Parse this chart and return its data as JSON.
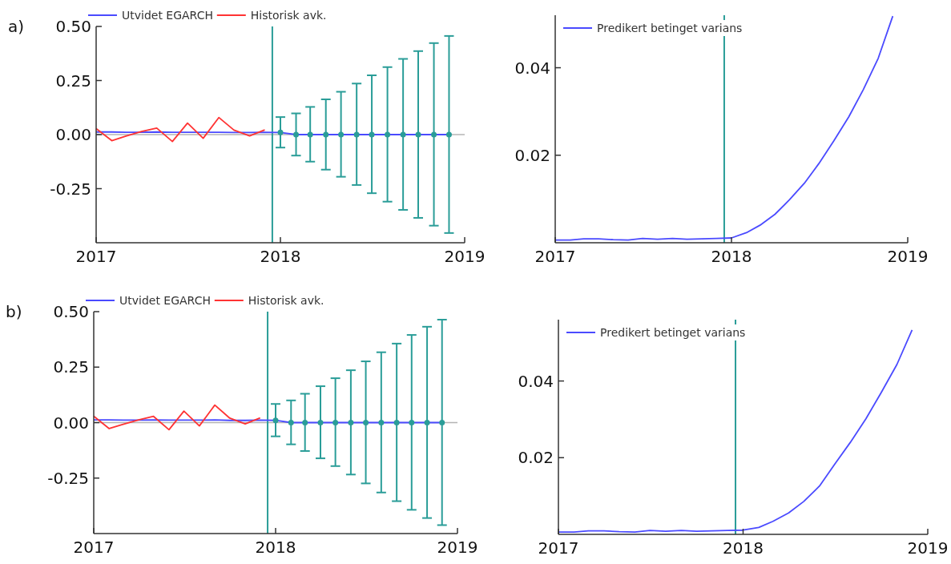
{
  "chart_data": [
    {
      "type": "line",
      "annotations": [
        "a)"
      ],
      "legend": "top",
      "marker": "none",
      "line_style": "solid",
      "xlim": [
        "2017-01-01",
        "2019-01-01"
      ],
      "xticks": [
        {
          "value": "2017-01-01",
          "label": "2017"
        },
        {
          "value": "2018-01-01",
          "label": "2018"
        },
        {
          "value": "2019-01-01",
          "label": "2019"
        }
      ],
      "ylim": [
        -0.5,
        0.5
      ],
      "yticks": [
        {
          "value": -0.25,
          "label": "-0.25"
        },
        {
          "value": 0,
          "label": "0.00"
        },
        {
          "value": 0.25,
          "label": "0.25"
        },
        {
          "value": 0.5,
          "label": "0.50"
        }
      ],
      "ref_lines": [
        {
          "axis": "y",
          "value": 0,
          "color": "#b4b4b4"
        },
        {
          "axis": "x",
          "value": "2017-12-16",
          "color": "#2a9d98"
        }
      ],
      "series": [
        {
          "name": "Utvidet EGARCH",
          "type": "line",
          "color": "#4a4aff",
          "x": [
            "2017-01",
            "2017-02",
            "2017-03",
            "2017-04",
            "2017-05",
            "2017-06",
            "2017-07",
            "2017-08",
            "2017-09",
            "2017-10",
            "2017-11",
            "2017-12",
            "2018-01",
            "2018-02",
            "2018-03",
            "2018-04",
            "2018-05",
            "2018-06",
            "2018-07",
            "2018-08",
            "2018-09",
            "2018-10",
            "2018-11",
            "2018-12"
          ],
          "values": [
            0.012,
            0.012,
            0.011,
            0.011,
            0.012,
            0.011,
            0.011,
            0.011,
            0.011,
            0.01,
            0.01,
            0.011,
            0.01,
            0,
            0,
            0,
            0,
            0,
            0,
            0,
            0,
            0,
            0,
            0
          ]
        },
        {
          "name": "Historisk avk.",
          "type": "line",
          "color": "#ff3333",
          "x": [
            "2017-01",
            "2017-02",
            "2017-03",
            "2017-04",
            "2017-05",
            "2017-06",
            "2017-07",
            "2017-08",
            "2017-09",
            "2017-10",
            "2017-11",
            "2017-12"
          ],
          "values": [
            0.028,
            -0.028,
            -0.007,
            0.014,
            0.03,
            -0.032,
            0.053,
            -0.017,
            0.079,
            0.021,
            -0.006,
            0.022
          ]
        },
        {
          "type": "scatter",
          "marker": "circle",
          "color": "#2a9d98",
          "x": [
            "2018-01",
            "2018-02",
            "2018-03",
            "2018-04",
            "2018-05",
            "2018-06",
            "2018-07",
            "2018-08",
            "2018-09",
            "2018-10",
            "2018-11",
            "2018-12"
          ],
          "values": [
            0.01,
            0,
            0,
            0,
            0,
            0,
            0,
            0,
            0,
            0,
            0,
            0
          ],
          "errors": [
            [
              -0.06,
              0.081
            ],
            [
              -0.097,
              0.098
            ],
            [
              -0.125,
              0.128
            ],
            [
              -0.162,
              0.163
            ],
            [
              -0.195,
              0.198
            ],
            [
              -0.233,
              0.236
            ],
            [
              -0.271,
              0.274
            ],
            [
              -0.31,
              0.312
            ],
            [
              -0.348,
              0.35
            ],
            [
              -0.385,
              0.386
            ],
            [
              -0.421,
              0.423
            ],
            [
              -0.455,
              0.456
            ]
          ]
        }
      ]
    },
    {
      "type": "line",
      "legend": "top left",
      "marker": "none",
      "line_style": "solid",
      "xlim": [
        "2017-01-01",
        "2019-01-01"
      ],
      "xticks": [
        {
          "value": "2017-01-01",
          "label": "2017"
        },
        {
          "value": "2018-01-01",
          "label": "2018"
        },
        {
          "value": "2019-01-01",
          "label": "2019"
        }
      ],
      "ylim": [
        0,
        0.052
      ],
      "yticks": [
        {
          "value": 0.02,
          "label": "0.02"
        },
        {
          "value": 0.04,
          "label": "0.04"
        }
      ],
      "ref_lines": [
        {
          "axis": "x",
          "value": "2017-12-17",
          "color": "#2a9d98"
        }
      ],
      "series": [
        {
          "name": "Predikert betinget varians",
          "type": "line",
          "color": "#4a4aff",
          "x": [
            "2017-01",
            "2017-02",
            "2017-03",
            "2017-04",
            "2017-05",
            "2017-06",
            "2017-07",
            "2017-08",
            "2017-09",
            "2017-10",
            "2017-11",
            "2017-12",
            "2018-01",
            "2018-02",
            "2018-03",
            "2018-04",
            "2018-05",
            "2018-06",
            "2018-07",
            "2018-08",
            "2018-09",
            "2018-10",
            "2018-11",
            "2018-12"
          ],
          "values": [
            0.0006,
            0.0006,
            0.0009,
            0.0009,
            0.0007,
            0.0006,
            0.001,
            0.0008,
            0.001,
            0.0008,
            0.0009,
            0.001,
            0.0011,
            0.0023,
            0.004,
            0.0065,
            0.0098,
            0.0136,
            0.0181,
            0.0233,
            0.0288,
            0.035,
            0.0422,
            0.0518
          ]
        }
      ]
    },
    {
      "type": "line",
      "annotations": [
        "b)"
      ],
      "legend": "top",
      "marker": "none",
      "line_style": "solid",
      "xlim": [
        "2017-01-01",
        "2019-01-01"
      ],
      "xticks": [
        {
          "value": "2017-01-01",
          "label": "2017"
        },
        {
          "value": "2018-01-01",
          "label": "2018"
        },
        {
          "value": "2019-01-01",
          "label": "2019"
        }
      ],
      "ylim": [
        -0.5,
        0.5
      ],
      "yticks": [
        {
          "value": -0.25,
          "label": "-0.25"
        },
        {
          "value": 0,
          "label": "0.00"
        },
        {
          "value": 0.25,
          "label": "0.25"
        },
        {
          "value": 0.5,
          "label": "0.50"
        }
      ],
      "ref_lines": [
        {
          "axis": "y",
          "value": 0,
          "color": "#b4b4b4"
        },
        {
          "axis": "x",
          "value": "2017-12-16",
          "color": "#2a9d98"
        }
      ],
      "series": [
        {
          "name": "Utvidet EGARCH",
          "type": "line",
          "color": "#4a4aff",
          "x": [
            "2017-01",
            "2017-02",
            "2017-03",
            "2017-04",
            "2017-05",
            "2017-06",
            "2017-07",
            "2017-08",
            "2017-09",
            "2017-10",
            "2017-11",
            "2017-12",
            "2018-01",
            "2018-02",
            "2018-03",
            "2018-04",
            "2018-05",
            "2018-06",
            "2018-07",
            "2018-08",
            "2018-09",
            "2018-10",
            "2018-11",
            "2018-12"
          ],
          "values": [
            0.012,
            0.012,
            0.011,
            0.011,
            0.012,
            0.011,
            0.011,
            0.011,
            0.012,
            0.01,
            0.01,
            0.011,
            0.01,
            0,
            0,
            0,
            0,
            0,
            0,
            0,
            0,
            0,
            0,
            0
          ]
        },
        {
          "name": "Historisk avk.",
          "type": "line",
          "color": "#ff3333",
          "x": [
            "2017-01",
            "2017-02",
            "2017-03",
            "2017-04",
            "2017-05",
            "2017-06",
            "2017-07",
            "2017-08",
            "2017-09",
            "2017-10",
            "2017-11",
            "2017-12"
          ],
          "values": [
            0.029,
            -0.027,
            -0.008,
            0.012,
            0.028,
            -0.032,
            0.052,
            -0.015,
            0.079,
            0.02,
            -0.006,
            0.021
          ]
        },
        {
          "type": "scatter",
          "marker": "circle",
          "color": "#2a9d98",
          "x": [
            "2018-01",
            "2018-02",
            "2018-03",
            "2018-04",
            "2018-05",
            "2018-06",
            "2018-07",
            "2018-08",
            "2018-09",
            "2018-10",
            "2018-11",
            "2018-12"
          ],
          "values": [
            0.01,
            0,
            0,
            0,
            0,
            0,
            0,
            0,
            0,
            0,
            0,
            0
          ],
          "errors": [
            [
              -0.062,
              0.084
            ],
            [
              -0.098,
              0.1
            ],
            [
              -0.128,
              0.13
            ],
            [
              -0.161,
              0.164
            ],
            [
              -0.196,
              0.2
            ],
            [
              -0.234,
              0.236
            ],
            [
              -0.274,
              0.276
            ],
            [
              -0.315,
              0.317
            ],
            [
              -0.354,
              0.356
            ],
            [
              -0.393,
              0.395
            ],
            [
              -0.43,
              0.432
            ],
            [
              -0.462,
              0.464
            ]
          ]
        }
      ]
    },
    {
      "type": "line",
      "legend": "top left",
      "marker": "none",
      "line_style": "solid",
      "xlim": [
        "2017-01-01",
        "2019-01-01"
      ],
      "xticks": [
        {
          "value": "2017-01-01",
          "label": "2017"
        },
        {
          "value": "2018-01-01",
          "label": "2018"
        },
        {
          "value": "2019-01-01",
          "label": "2019"
        }
      ],
      "ylim": [
        0,
        0.056
      ],
      "yticks": [
        {
          "value": 0.02,
          "label": "0.02"
        },
        {
          "value": 0.04,
          "label": "0.04"
        }
      ],
      "ref_lines": [
        {
          "axis": "x",
          "value": "2017-12-17",
          "color": "#2a9d98"
        }
      ],
      "series": [
        {
          "name": "Predikert betinget varians",
          "type": "line",
          "color": "#4a4aff",
          "x": [
            "2017-01",
            "2017-02",
            "2017-03",
            "2017-04",
            "2017-05",
            "2017-06",
            "2017-07",
            "2017-08",
            "2017-09",
            "2017-10",
            "2017-11",
            "2017-12",
            "2018-01",
            "2018-02",
            "2018-03",
            "2018-04",
            "2018-05",
            "2018-06",
            "2018-07",
            "2018-08",
            "2018-09",
            "2018-10",
            "2018-11",
            "2018-12"
          ],
          "values": [
            0.0006,
            0.0006,
            0.0009,
            0.0009,
            0.0007,
            0.0006,
            0.001,
            0.0008,
            0.001,
            0.0008,
            0.0009,
            0.001,
            0.0011,
            0.0018,
            0.0034,
            0.0056,
            0.0086,
            0.0126,
            0.0183,
            0.024,
            0.0302,
            0.037,
            0.0443,
            0.0533
          ]
        }
      ]
    }
  ]
}
